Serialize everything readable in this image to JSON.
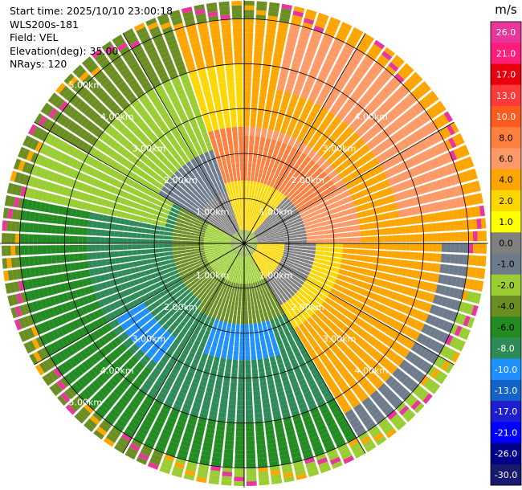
{
  "info": {
    "start_time": "Start time: 2025/10/10 23:00:18",
    "station": "WLS200s-181",
    "field": "Field: VEL",
    "elevation": "Elevation(deg): 35.00",
    "nrays": "NRays: 120"
  },
  "chart_data": {
    "type": "heatmap",
    "projection": "polar PPI",
    "nrays": 120,
    "range_rings_km": [
      1.0,
      2.0,
      3.0,
      4.0,
      5.0
    ],
    "ring_labels": [
      "1.00km",
      "2.00km",
      "3.00km",
      "4.00km",
      "5.00km"
    ],
    "max_range_km": 5.4,
    "colorbar": {
      "unit": "m/s",
      "ticks": [
        "26.0",
        "21.0",
        "17.0",
        "13.0",
        "10.0",
        "8.0",
        "6.0",
        "4.0",
        "2.0",
        "1.0",
        "0.0",
        "-1.0",
        "-2.0",
        "-4.0",
        "-6.0",
        "-8.0",
        "-10.0",
        "-13.0",
        "-17.0",
        "-21.0",
        "-26.0",
        "-30.0"
      ],
      "colors": [
        "#e8379a",
        "#ff1f7a",
        "#e8000d",
        "#ff3a3a",
        "#ff5a1f",
        "#ff7f3f",
        "#ff9966",
        "#ffa500",
        "#ffd700",
        "#ffff00",
        "#808080",
        "#6e7b8b",
        "#9acd32",
        "#6b8e23",
        "#228b22",
        "#2e8b57",
        "#1e90ff",
        "#1464c8",
        "#1e1ecf",
        "#0000ff",
        "#00008b",
        "#191970"
      ]
    }
  }
}
